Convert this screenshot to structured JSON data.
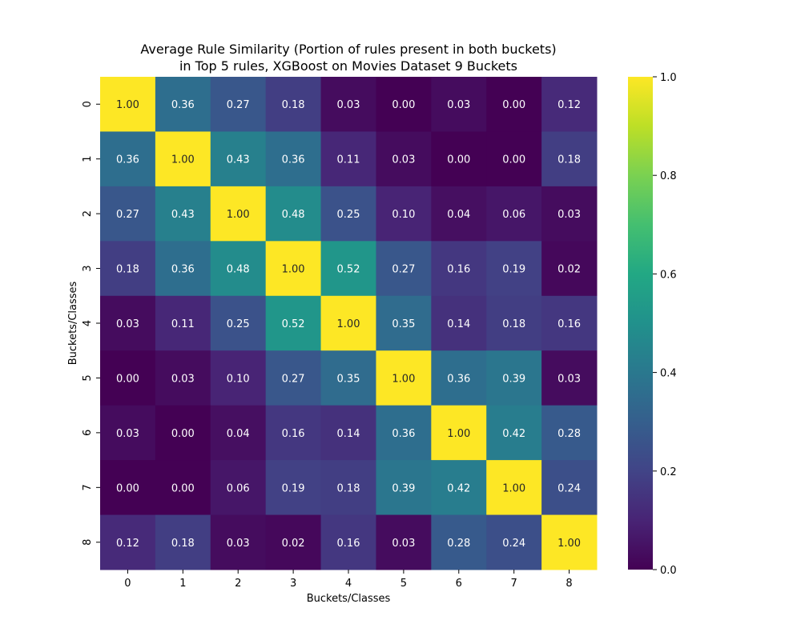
{
  "chart_data": {
    "type": "heatmap",
    "title_lines": [
      "Average Rule Similarity (Portion of rules present in both buckets)",
      "in Top 5 rules, XGBoost on Movies Dataset 9 Buckets"
    ],
    "xlabel": "Buckets/Classes",
    "ylabel": "Buckets/Classes",
    "x_categories": [
      "0",
      "1",
      "2",
      "3",
      "4",
      "5",
      "6",
      "7",
      "8"
    ],
    "y_categories": [
      "0",
      "1",
      "2",
      "3",
      "4",
      "5",
      "6",
      "7",
      "8"
    ],
    "values": [
      [
        1.0,
        0.36,
        0.27,
        0.18,
        0.03,
        0.0,
        0.03,
        0.0,
        0.12
      ],
      [
        0.36,
        1.0,
        0.43,
        0.36,
        0.11,
        0.03,
        0.0,
        0.0,
        0.18
      ],
      [
        0.27,
        0.43,
        1.0,
        0.48,
        0.25,
        0.1,
        0.04,
        0.06,
        0.03
      ],
      [
        0.18,
        0.36,
        0.48,
        1.0,
        0.52,
        0.27,
        0.16,
        0.19,
        0.02
      ],
      [
        0.03,
        0.11,
        0.25,
        0.52,
        1.0,
        0.35,
        0.14,
        0.18,
        0.16
      ],
      [
        0.0,
        0.03,
        0.1,
        0.27,
        0.35,
        1.0,
        0.36,
        0.39,
        0.03
      ],
      [
        0.03,
        0.0,
        0.04,
        0.16,
        0.14,
        0.36,
        1.0,
        0.42,
        0.28
      ],
      [
        0.0,
        0.0,
        0.06,
        0.19,
        0.18,
        0.39,
        0.42,
        1.0,
        0.24
      ],
      [
        0.12,
        0.18,
        0.03,
        0.02,
        0.16,
        0.03,
        0.28,
        0.24,
        1.0
      ]
    ],
    "value_range": [
      0.0,
      1.0
    ],
    "colormap": "viridis",
    "colorbar_ticks": [
      "0.0",
      "0.2",
      "0.4",
      "0.6",
      "0.8",
      "1.0"
    ],
    "grid": false
  }
}
